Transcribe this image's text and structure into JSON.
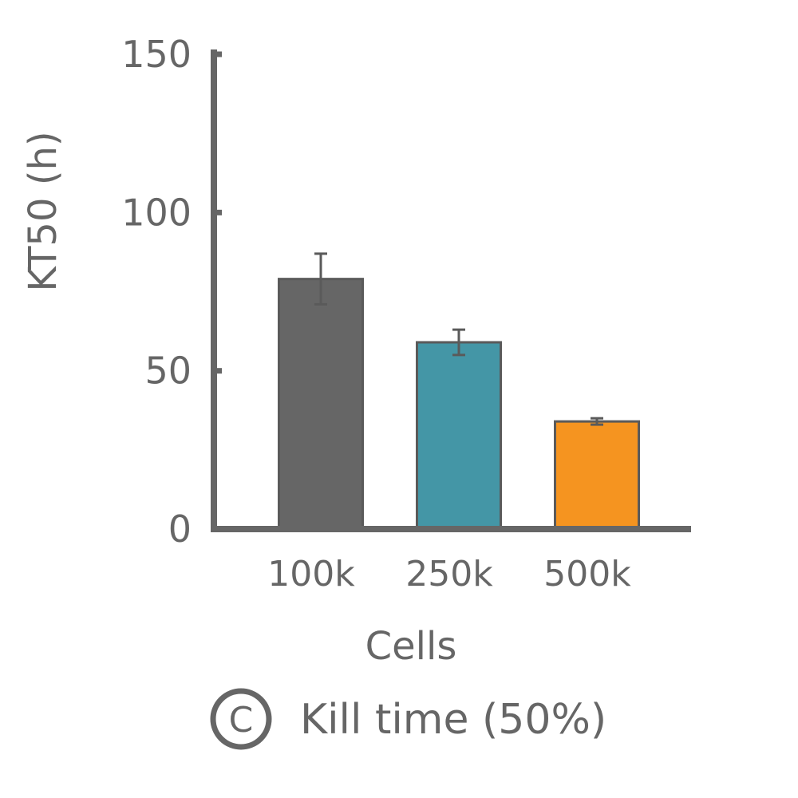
{
  "chart_data": {
    "type": "bar",
    "categories": [
      "100k",
      "250k",
      "500k"
    ],
    "values": [
      79,
      59,
      34
    ],
    "errors": [
      8,
      4,
      1
    ],
    "colors": [
      "#666666",
      "#4496a6",
      "#f59420"
    ],
    "xlabel": "Cells",
    "ylabel": "KT50 (h)",
    "ylim": [
      0,
      150
    ],
    "yticks": [
      "0",
      "50",
      "100",
      "150"
    ],
    "error_bars": true,
    "grid": false
  },
  "caption": {
    "panel_letter": "C",
    "text": "Kill time (50%)"
  },
  "colors": {
    "axis": "#666666",
    "text": "#666666",
    "bar_outline": "#5a5a5a"
  }
}
